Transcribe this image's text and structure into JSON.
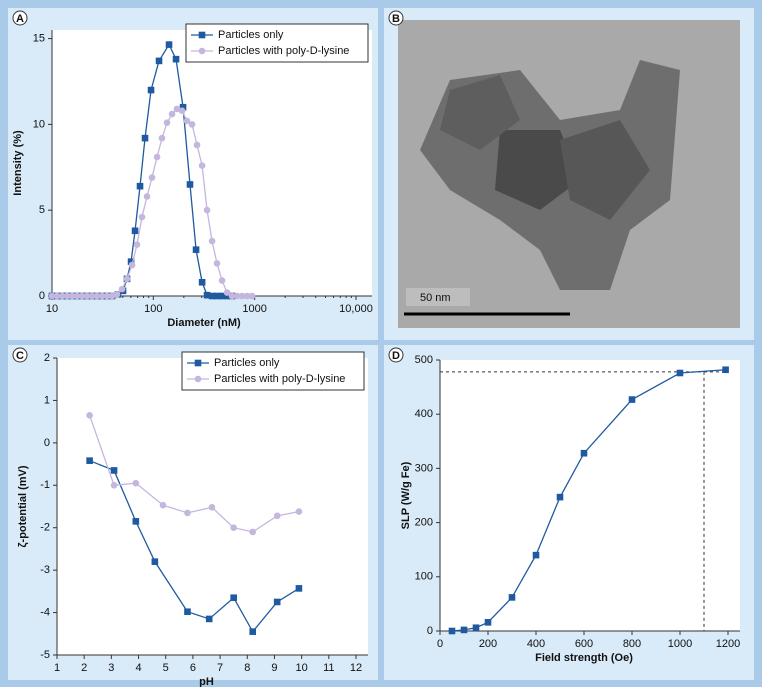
{
  "panel_labels": [
    "A",
    "B",
    "C",
    "D"
  ],
  "micrograph": {
    "scale_label": "50 nm"
  },
  "chart_data": [
    {
      "type": "line",
      "xlabel": "Diameter (nM)",
      "ylabel": "Intensity (%)",
      "xscale": "log",
      "xlim": [
        10,
        10000
      ],
      "xticks": [
        10,
        100,
        1000,
        {
          "value": 10000,
          "label": "10,000"
        }
      ],
      "ylim": [
        0,
        15.5
      ],
      "yticks": [
        0,
        5,
        10,
        15
      ],
      "legend": "upper right",
      "series": [
        {
          "name": "Particles only",
          "color": "#1f5aa0",
          "marker": "square",
          "x": [
            10,
            11.2,
            12.6,
            14.1,
            15.8,
            17.7,
            19.8,
            22.2,
            24.8,
            27.8,
            31.2,
            34.9,
            39.1,
            44.8,
            50.2,
            55.0,
            60.3,
            66.0,
            73.9,
            82.8,
            94.9,
            113.8,
            142.9,
            167.5,
            196.5,
            230,
            264,
            303,
            339,
            380,
            425,
            477,
            534,
            598
          ],
          "values": [
            0,
            0,
            0,
            0,
            0,
            0,
            0,
            0,
            0,
            0,
            0,
            0,
            0,
            0.1,
            0.3,
            1.0,
            2.0,
            3.8,
            6.4,
            9.2,
            12.0,
            13.7,
            14.65,
            13.8,
            11.0,
            6.5,
            2.7,
            0.8,
            0.05,
            0,
            0,
            0,
            0,
            0
          ]
        },
        {
          "name": "Particles with poly-D-lysine",
          "color": "#c4b6dc",
          "marker": "circle",
          "x": [
            10,
            11.2,
            12.6,
            14.1,
            15.8,
            17.7,
            19.8,
            22.2,
            24.8,
            27.8,
            31.2,
            34.9,
            39.1,
            43.8,
            49.1,
            55.0,
            61.6,
            69.0,
            77.3,
            86.6,
            97.0,
            108.8,
            121.8,
            136.5,
            153,
            171,
            192,
            215,
            241,
            270,
            303,
            339,
            380,
            425,
            477,
            534,
            598,
            670,
            751,
            841,
            942
          ],
          "values": [
            0,
            0,
            0,
            0,
            0,
            0,
            0,
            0,
            0,
            0,
            0,
            0,
            0,
            0.1,
            0.4,
            1.0,
            1.8,
            3.0,
            4.6,
            5.8,
            6.9,
            8.1,
            9.2,
            10.1,
            10.6,
            10.9,
            10.8,
            10.2,
            10.0,
            8.8,
            7.6,
            5.0,
            3.2,
            1.9,
            0.9,
            0.2,
            0,
            0,
            0,
            0,
            0
          ]
        }
      ]
    },
    {
      "type": "line",
      "xlabel": "pH",
      "ylabel": "ζ-potential (mV)",
      "xlim": [
        1,
        12
      ],
      "xticks": [
        1,
        2,
        3,
        4,
        5,
        6,
        7,
        8,
        9,
        10,
        11,
        12
      ],
      "ylim": [
        -5,
        2
      ],
      "yticks": [
        -5,
        -4,
        -3,
        -2,
        -1,
        0,
        1,
        2
      ],
      "legend": "upper right",
      "series": [
        {
          "name": "Particles only",
          "color": "#1f5aa0",
          "marker": "square",
          "x": [
            2.2,
            3.1,
            3.9,
            4.6,
            5.8,
            6.6,
            7.5,
            8.2,
            9.1,
            9.9
          ],
          "values": [
            -0.42,
            -0.65,
            -1.85,
            -2.8,
            -3.98,
            -4.15,
            -3.65,
            -4.45,
            -3.75,
            -3.43
          ]
        },
        {
          "name": "Particles with poly-D-lysine",
          "color": "#c4b6dc",
          "marker": "circle",
          "x": [
            2.2,
            3.1,
            3.9,
            4.9,
            5.8,
            6.7,
            7.5,
            8.2,
            9.1,
            9.9
          ],
          "values": [
            0.65,
            -1.0,
            -0.95,
            -1.47,
            -1.65,
            -1.52,
            -2.0,
            -2.1,
            -1.72,
            -1.62
          ]
        }
      ]
    },
    {
      "type": "line",
      "xlabel": "Field strength (Oe)",
      "ylabel": "SLP (W/g Fe)",
      "xlim": [
        0,
        1200
      ],
      "xticks": [
        0,
        200,
        400,
        600,
        800,
        1000,
        1200
      ],
      "ylim": [
        0,
        500
      ],
      "yticks": [
        0,
        100,
        200,
        300,
        400,
        500
      ],
      "reference_lines": {
        "x": 1100,
        "y": 478
      },
      "series": [
        {
          "color": "#1f5aa0",
          "marker": "square",
          "x": [
            50,
            100,
            150,
            200,
            300,
            400,
            500,
            600,
            800,
            1000,
            1190
          ],
          "values": [
            0,
            2,
            6,
            16,
            62,
            140,
            247,
            328,
            427,
            476,
            482
          ]
        }
      ]
    }
  ]
}
